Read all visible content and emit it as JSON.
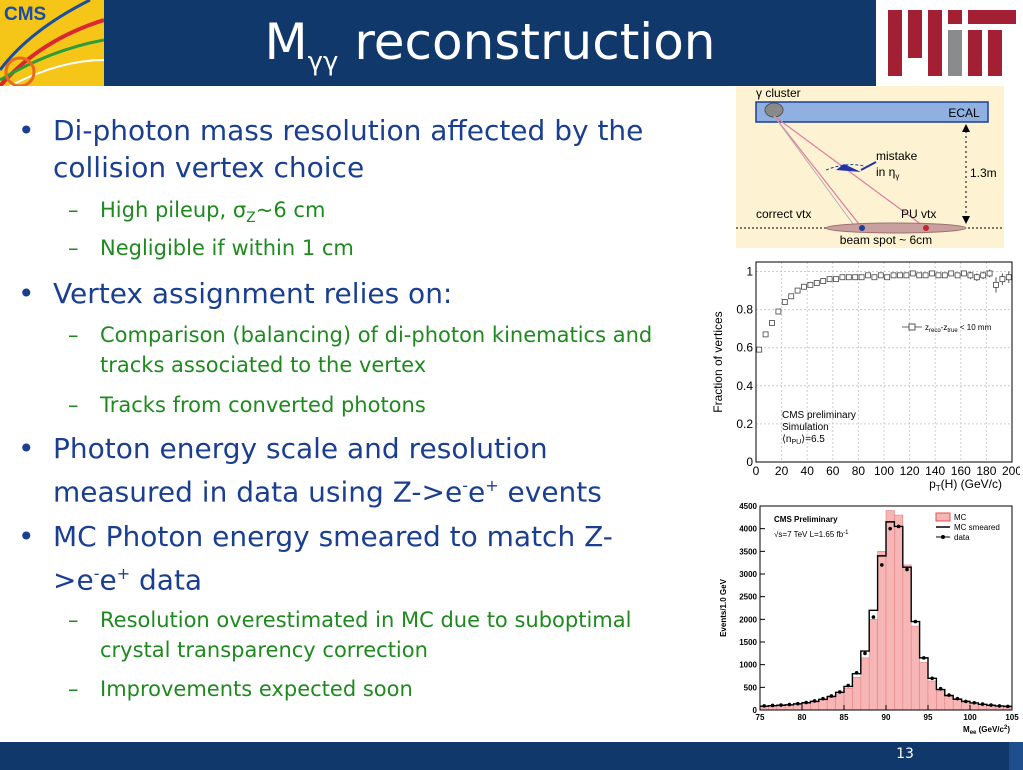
{
  "header": {
    "title_main": "M",
    "title_sub": "γγ",
    "title_rest": " reconstruction",
    "cms_logo": "CMS",
    "mit_logo_icon": "mit-logo"
  },
  "bullets": [
    {
      "text": "Di-photon mass resolution affected by the collision vertex choice",
      "subs": [
        "High pileup, σ",
        "Z",
        "~6 cm",
        "Negligible if within 1 cm"
      ]
    },
    {
      "text": "Vertex assignment relies on:",
      "subs": [
        "Comparison (balancing) of di-photon kinematics and tracks associated to the vertex",
        "Tracks from converted photons"
      ]
    },
    {
      "text_a": "Photon energy scale and resolution measured in data using Z->e",
      "sup1": "-",
      "text_b": "e",
      "sup2": "+",
      "text_c": " events"
    },
    {
      "text_a": "MC Photon energy smeared to match Z->e",
      "sup1": "-",
      "text_b": "e",
      "sup2": "+",
      "text_c": " data",
      "subs": [
        "Resolution overestimated in MC due to suboptimal crystal transparency correction",
        "Improvements expected soon"
      ]
    }
  ],
  "diagram": {
    "cluster": "γ cluster",
    "ecal": "ECAL",
    "mistake": "mistake",
    "in_eta": "in η",
    "eta_sub": "γ",
    "distance": "1.3m",
    "correct": "correct vtx",
    "pu": "PU vtx",
    "beam": "beam spot ~ 6cm"
  },
  "chart_data": [
    {
      "type": "scatter",
      "ylabel": "Fraction of vertices",
      "xlabel": "p",
      "xlabel_sub": "T",
      "xlabel_rest": "(H) (GeV/c)",
      "legend": "z",
      "legend_sub1": "reco",
      "legend_mid": "-z",
      "legend_sub2": "true",
      "legend_rest": " < 10 mm",
      "text1": "CMS preliminary",
      "text2": "Simulation",
      "text3": "⟨n",
      "text3_sub": "PU",
      "text3_rest": "⟩=6.5",
      "xticks": [
        "0",
        "20",
        "40",
        "60",
        "80",
        "100",
        "120",
        "140",
        "160",
        "180",
        "200"
      ],
      "yticks": [
        "0",
        "0.2",
        "0.4",
        "0.6",
        "0.8",
        "1"
      ],
      "xlim": [
        0,
        200
      ],
      "ylim": [
        0,
        1.05
      ],
      "x": [
        2.5,
        7.5,
        12.5,
        17.5,
        22.5,
        27.5,
        32.5,
        37.5,
        42.5,
        47.5,
        52.5,
        57.5,
        62.5,
        67.5,
        72.5,
        77.5,
        82.5,
        87.5,
        92.5,
        97.5,
        102.5,
        107.5,
        112.5,
        117.5,
        122.5,
        127.5,
        132.5,
        137.5,
        142.5,
        147.5,
        152.5,
        157.5,
        162.5,
        167.5,
        172.5,
        177.5,
        182.5,
        187.5,
        192.5,
        197.5
      ],
      "y": [
        0.59,
        0.67,
        0.73,
        0.79,
        0.84,
        0.87,
        0.9,
        0.92,
        0.93,
        0.94,
        0.95,
        0.96,
        0.96,
        0.97,
        0.97,
        0.97,
        0.97,
        0.98,
        0.97,
        0.98,
        0.97,
        0.98,
        0.98,
        0.98,
        0.99,
        0.98,
        0.98,
        0.99,
        0.98,
        0.98,
        0.99,
        0.98,
        0.99,
        0.98,
        0.97,
        0.98,
        0.99,
        0.93,
        0.96,
        0.97
      ],
      "err": [
        0.01,
        0.01,
        0.01,
        0.01,
        0.01,
        0.01,
        0.01,
        0.01,
        0.01,
        0.01,
        0.01,
        0.01,
        0.01,
        0.01,
        0.01,
        0.01,
        0.01,
        0.01,
        0.01,
        0.01,
        0.01,
        0.01,
        0.01,
        0.01,
        0.01,
        0.01,
        0.01,
        0.01,
        0.01,
        0.01,
        0.01,
        0.01,
        0.01,
        0.02,
        0.02,
        0.02,
        0.02,
        0.04,
        0.03,
        0.03
      ]
    },
    {
      "type": "bar",
      "title": "CMS Preliminary",
      "subtitle": "√s=7 TeV L=1.65 fb",
      "subtitle_sup": "-1",
      "ylabel": "Events/1.0 GeV",
      "xlabel": "M",
      "xlabel_sub": "ee",
      "xlabel_rest": " (GeV/c",
      "xlabel_sup": "2",
      "xlabel_end": ")",
      "xticks": [
        "75",
        "80",
        "85",
        "90",
        "95",
        "100",
        "105"
      ],
      "yticks": [
        "0",
        "500",
        "1000",
        "1500",
        "2000",
        "2500",
        "3000",
        "3500",
        "4000",
        "4500"
      ],
      "xlim": [
        75,
        105
      ],
      "ylim": [
        0,
        4500
      ],
      "legend": [
        "MC",
        "MC smeared",
        "data"
      ],
      "x": [
        75.5,
        76.5,
        77.5,
        78.5,
        79.5,
        80.5,
        81.5,
        82.5,
        83.5,
        84.5,
        85.5,
        86.5,
        87.5,
        88.5,
        89.5,
        90.5,
        91.5,
        92.5,
        93.5,
        94.5,
        95.5,
        96.5,
        97.5,
        98.5,
        99.5,
        100.5,
        101.5,
        102.5,
        103.5,
        104.5
      ],
      "mc": [
        80,
        90,
        100,
        110,
        130,
        150,
        180,
        220,
        280,
        360,
        480,
        720,
        1150,
        2000,
        3500,
        4400,
        4300,
        3200,
        1850,
        1050,
        640,
        420,
        300,
        230,
        180,
        150,
        120,
        100,
        90,
        80
      ],
      "mc_smeared": [
        85,
        95,
        105,
        115,
        135,
        160,
        190,
        235,
        300,
        390,
        520,
        800,
        1300,
        2200,
        3400,
        4150,
        4050,
        3150,
        1950,
        1150,
        700,
        450,
        320,
        240,
        190,
        155,
        125,
        105,
        90,
        80
      ],
      "data": [
        90,
        100,
        110,
        120,
        140,
        165,
        200,
        250,
        310,
        400,
        540,
        820,
        1250,
        2050,
        3200,
        4000,
        4050,
        3100,
        1950,
        1150,
        700,
        470,
        330,
        250,
        190,
        160,
        130,
        110,
        90,
        80
      ]
    }
  ],
  "footer": {
    "page_number": "13"
  }
}
